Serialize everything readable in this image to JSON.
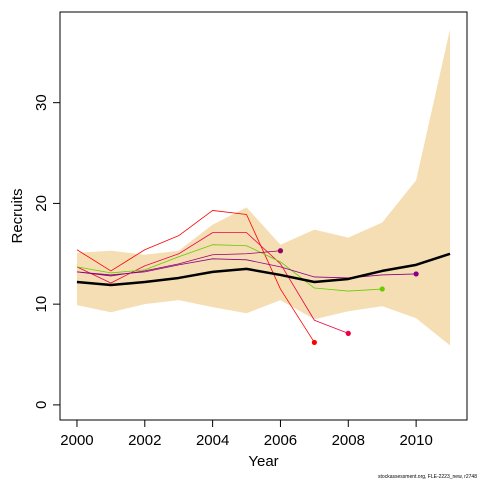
{
  "chart_data": {
    "type": "line",
    "title": "",
    "xlabel": "Year",
    "ylabel": "Recruits",
    "xlim": [
      1999.5,
      2011.5
    ],
    "ylim": [
      -1.5,
      39
    ],
    "x_ticks": [
      2000,
      2002,
      2004,
      2006,
      2008,
      2010
    ],
    "y_ticks": [
      0,
      10,
      20,
      30
    ],
    "grid": false,
    "legend": "none",
    "credit": "stockassessment.org, FLE-2223_new, r2748",
    "band": {
      "color": "#f5deb3",
      "x": [
        2000,
        2001,
        2002,
        2003,
        2004,
        2005,
        2006,
        2007,
        2008,
        2009,
        2010,
        2011
      ],
      "lower": [
        9.9,
        9.2,
        10.0,
        10.4,
        9.7,
        9.1,
        10.4,
        8.5,
        9.3,
        9.8,
        8.6,
        5.9
      ],
      "upper": [
        15.1,
        15.3,
        14.9,
        15.3,
        17.9,
        19.6,
        15.9,
        17.4,
        16.6,
        18.1,
        22.3,
        37.3
      ]
    },
    "series": [
      {
        "color": "#000000",
        "width": 2.5,
        "x": [
          2000,
          2001,
          2002,
          2003,
          2004,
          2005,
          2006,
          2007,
          2008,
          2009,
          2010,
          2011
        ],
        "values": [
          12.2,
          11.9,
          12.2,
          12.6,
          13.2,
          13.5,
          12.9,
          12.2,
          12.5,
          13.3,
          13.9,
          15.0
        ],
        "end_marker": false
      },
      {
        "color": "#ff0000",
        "width": 0.8,
        "x": [
          2000,
          2001,
          2002,
          2003,
          2004,
          2005,
          2006,
          2007
        ],
        "values": [
          15.4,
          13.3,
          15.4,
          16.8,
          19.3,
          18.9,
          11.5,
          6.2
        ],
        "end_marker": true
      },
      {
        "color": "#ee0044",
        "width": 0.8,
        "x": [
          2000,
          2001,
          2002,
          2003,
          2004,
          2005,
          2006,
          2007,
          2008
        ],
        "values": [
          13.7,
          12.1,
          13.8,
          15.0,
          17.1,
          17.1,
          14.0,
          8.4,
          7.1
        ],
        "end_marker": true
      },
      {
        "color": "#66cc00",
        "width": 0.8,
        "x": [
          2000,
          2001,
          2002,
          2003,
          2004,
          2005,
          2006,
          2007,
          2008,
          2009
        ],
        "values": [
          13.7,
          13.1,
          13.4,
          14.7,
          15.9,
          15.8,
          14.2,
          11.6,
          11.3,
          11.5
        ],
        "end_marker": true
      },
      {
        "color": "#990066",
        "width": 0.8,
        "x": [
          2000,
          2001,
          2002,
          2003,
          2004,
          2005,
          2006
        ],
        "values": [
          13.2,
          12.8,
          13.3,
          14.0,
          14.9,
          15.0,
          15.3
        ],
        "end_marker": true
      },
      {
        "color": "#880088",
        "width": 0.8,
        "x": [
          2000,
          2001,
          2002,
          2003,
          2004,
          2005,
          2006,
          2007,
          2008,
          2009,
          2010
        ],
        "values": [
          13.2,
          12.9,
          13.2,
          13.9,
          14.5,
          14.4,
          13.7,
          12.7,
          12.6,
          12.9,
          13.0
        ],
        "end_marker": true
      }
    ]
  }
}
